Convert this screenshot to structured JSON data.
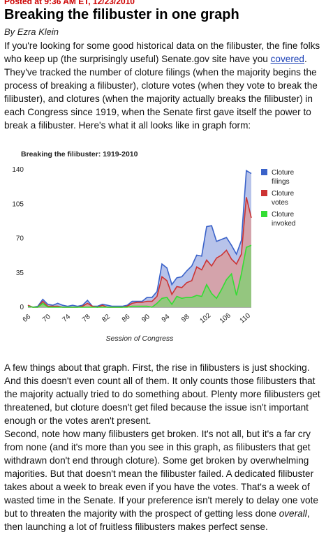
{
  "post": {
    "posted_line": "Posted at 9:36 AM ET, 12/23/2010",
    "title": "Breaking the filibuster in one graph",
    "byline": "By Ezra Klein",
    "para1_before_link": "If you're looking for some good historical data on the filibuster, the fine folks who keep up (the surprisingly useful) Senate.gov site have you ",
    "para1_link": "covered",
    "para1_after_link": ". They've tracked the number of cloture filings (when the majority begins the process of breaking a filibuster), cloture votes (when they vote to break the filibuster), and clotures (when the majority actually breaks the filibuster) in each Congress since 1919, when the Senate first gave itself the power to break a filibuster. Here's what it all looks like in graph form:",
    "para2": "A few things about that graph. First, the rise in filibusters is just shocking. And this doesn't even count all of them. It only counts those filibusters that the majority actually tried to do something about. Plenty more filibusters get threatened, but cloture doesn't get filed because the issue isn't important enough or the votes aren't present.",
    "para3_before_em": "Second, note how many filibusters get broken. It's not all, but it's a far cry from none (and it's more than you see in this graph, as filibusters that get withdrawn don't end through cloture). Some get broken by overwhelming majorities. But that doesn't mean the filibuster failed. A dedicated filibuster takes about a week to break even if you have the votes. That's a week of wasted time in the Senate. If your preference isn't merely to delay one vote but to threaten the majority with the prospect of getting less done ",
    "para3_em": "overall",
    "para3_after_em": ", then launching a lot of fruitless filibusters makes perfect sense."
  },
  "chart_data": {
    "type": "area",
    "title": "Breaking the filibuster: 1919-2010",
    "xlabel": "Session of Congress",
    "ylabel": "",
    "x": [
      66,
      67,
      68,
      69,
      70,
      71,
      72,
      73,
      74,
      75,
      76,
      77,
      78,
      79,
      80,
      81,
      82,
      83,
      84,
      85,
      86,
      87,
      88,
      89,
      90,
      91,
      92,
      93,
      94,
      95,
      96,
      97,
      98,
      99,
      100,
      101,
      102,
      103,
      104,
      105,
      106,
      107,
      108,
      109,
      110,
      111
    ],
    "xticks": [
      "66",
      "70",
      "74",
      "78",
      "82",
      "86",
      "90",
      "94",
      "98",
      "102",
      "106",
      "110"
    ],
    "xlim": [
      66,
      111
    ],
    "ylim": [
      0,
      140
    ],
    "yticks": [
      0,
      35,
      70,
      105,
      140
    ],
    "grid": false,
    "legend_position": "right",
    "series": [
      {
        "name": "Cloture filings",
        "color": "#3a62c9",
        "fill": "#aab8e6",
        "values": [
          2,
          0,
          1,
          8,
          3,
          2,
          4,
          2,
          1,
          2,
          1,
          2,
          7,
          1,
          1,
          3,
          2,
          1,
          1,
          1,
          2,
          6,
          6,
          6,
          10,
          10,
          16,
          44,
          40,
          23,
          30,
          31,
          37,
          42,
          53,
          52,
          82,
          83,
          67,
          69,
          71,
          63,
          54,
          68,
          139,
          136
        ]
      },
      {
        "name": "Cloture votes",
        "color": "#cc3333",
        "fill": "#d99ea0",
        "values": [
          2,
          0,
          0,
          6,
          1,
          1,
          1,
          0,
          0,
          0,
          0,
          1,
          4,
          1,
          0,
          2,
          0,
          0,
          0,
          0,
          1,
          4,
          5,
          5,
          6,
          6,
          11,
          31,
          27,
          13,
          21,
          20,
          25,
          27,
          41,
          38,
          48,
          42,
          50,
          53,
          58,
          49,
          44,
          54,
          112,
          91
        ]
      },
      {
        "name": "Cloture invoked",
        "color": "#33dd33",
        "fill": "#88cc77",
        "values": [
          1,
          0,
          0,
          4,
          0,
          0,
          0,
          0,
          0,
          0,
          0,
          0,
          0,
          0,
          0,
          0,
          0,
          0,
          0,
          0,
          0,
          1,
          1,
          1,
          1,
          0,
          4,
          9,
          10,
          3,
          11,
          9,
          10,
          10,
          12,
          11,
          23,
          14,
          9,
          18,
          28,
          34,
          12,
          34,
          61,
          63
        ]
      }
    ]
  }
}
